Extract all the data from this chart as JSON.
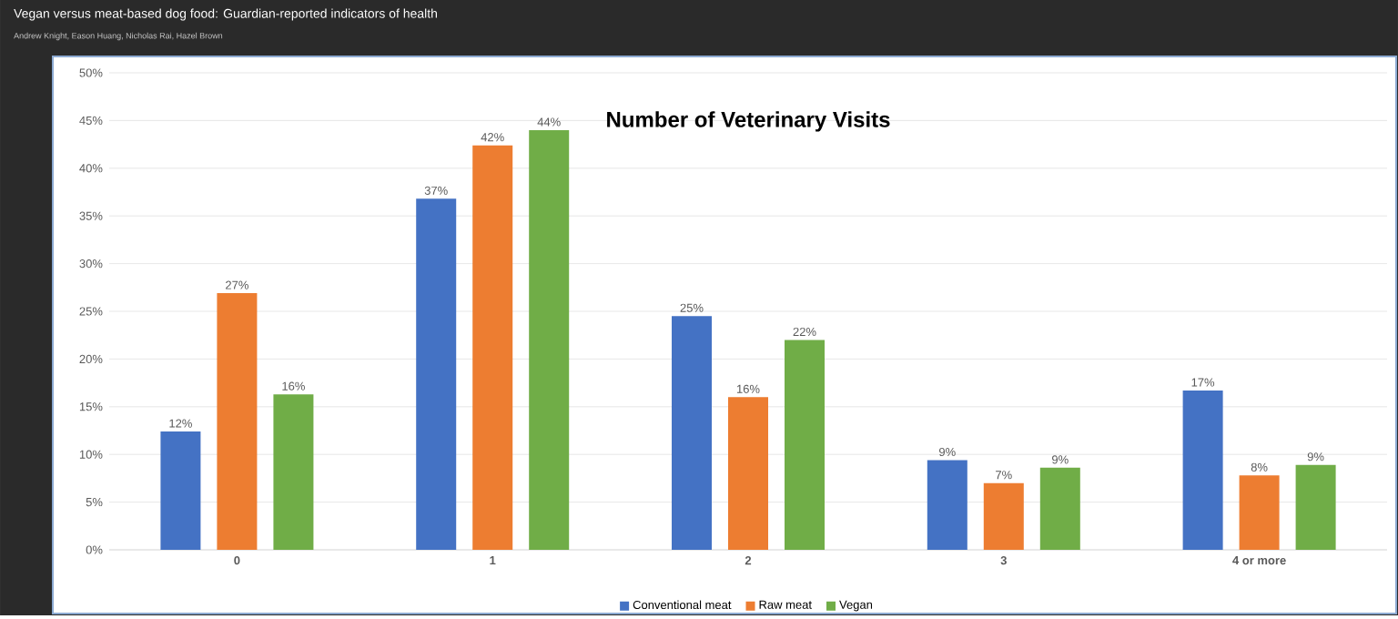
{
  "chart_data": {
    "type": "bar",
    "title": "Number of Veterinary Visits",
    "subtitle": "Vegan versus meat-based dog food: Guardian-reported indicators of health",
    "annotations": [
      "Andrew Knight,  Eason Huang,  Nicholas Rai,  Hazel Brown"
    ],
    "categories": [
      "0",
      "1",
      "2",
      "3",
      "4 or more"
    ],
    "series": [
      {
        "name": "Conventional meat",
        "color": "#4472c4",
        "values": [
          12.4,
          36.8,
          24.5,
          9.4,
          16.7
        ],
        "value_labels": [
          "12%",
          "37%",
          "25%",
          "9%",
          "17%"
        ]
      },
      {
        "name": "Raw meat",
        "color": "#ed7d31",
        "values": [
          26.9,
          42.4,
          16.0,
          7.0,
          7.8
        ],
        "value_labels": [
          "27%",
          "42%",
          "16%",
          "7%",
          "8%"
        ]
      },
      {
        "name": "Vegan",
        "color": "#70ad47",
        "values": [
          16.3,
          44.0,
          22.0,
          8.6,
          8.9
        ],
        "value_labels": [
          "16%",
          "44%",
          "22%",
          "9%",
          "9%"
        ]
      }
    ],
    "ylim": [
      0,
      50
    ],
    "yticks": [
      {
        "value": 0,
        "label": "0%"
      },
      {
        "value": 5,
        "label": "5%"
      },
      {
        "value": 10,
        "label": "10%"
      },
      {
        "value": 15,
        "label": "15%"
      },
      {
        "value": 20,
        "label": "20%"
      },
      {
        "value": 25,
        "label": "25%"
      },
      {
        "value": 30,
        "label": "30%"
      },
      {
        "value": 35,
        "label": "35%"
      },
      {
        "value": 40,
        "label": "40%"
      },
      {
        "value": 45,
        "label": "45%"
      },
      {
        "value": 50,
        "label": "50%"
      }
    ],
    "grid": "y",
    "legend": "bottom"
  }
}
